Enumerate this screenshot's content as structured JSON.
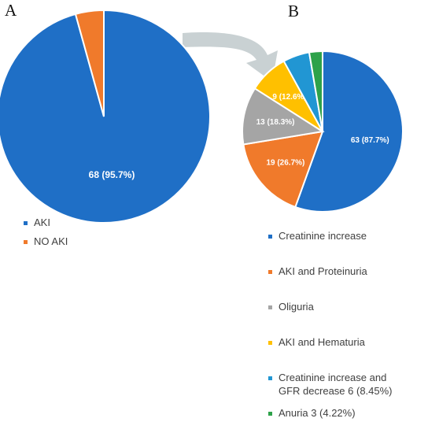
{
  "panel_labels": {
    "a": "A",
    "b": "B"
  },
  "arrow_color": "#c9d1d3",
  "chart_data": [
    {
      "type": "pie",
      "panel": "A",
      "slices": [
        {
          "name": "AKI",
          "value": 95.7,
          "label": "68 (95.7%)",
          "color": "#1f6fc6"
        },
        {
          "name": "NO AKI",
          "value": 4.3,
          "label": "",
          "color": "#f07a2b"
        }
      ],
      "legend": [
        "AKI",
        "NO AKI"
      ],
      "legend_position": "bottom-left"
    },
    {
      "type": "pie",
      "panel": "B",
      "slices": [
        {
          "name": "Creatinine increase",
          "value": 87.7,
          "label": "63 (87.7%)",
          "color": "#1f6fc6"
        },
        {
          "name": "AKI and Proteinuria",
          "value": 26.7,
          "label": "19 (26.7%)",
          "color": "#f07a2b"
        },
        {
          "name": "Oliguria",
          "value": 18.3,
          "label": "13 (18.3%)",
          "color": "#a5a5a5"
        },
        {
          "name": "AKI and Hematuria",
          "value": 12.6,
          "label": "9 (12.6%)",
          "color": "#ffc000"
        },
        {
          "name": "Creatinine increase and GFR decrease",
          "value": 8.45,
          "label": "",
          "color": "#2196d3"
        },
        {
          "name": "Anuria",
          "value": 4.22,
          "label": "",
          "color": "#2ea24a"
        }
      ],
      "legend": [
        [
          "Creatinine increase"
        ],
        [
          "AKI and Proteinuria"
        ],
        [
          "Oliguria"
        ],
        [
          "AKI and Hematuria"
        ],
        [
          "Creatinine increase and",
          "GFR decrease 6 (8.45%)"
        ],
        [
          "Anuria 3 (4.22%)"
        ]
      ],
      "legend_position": "bottom"
    }
  ]
}
